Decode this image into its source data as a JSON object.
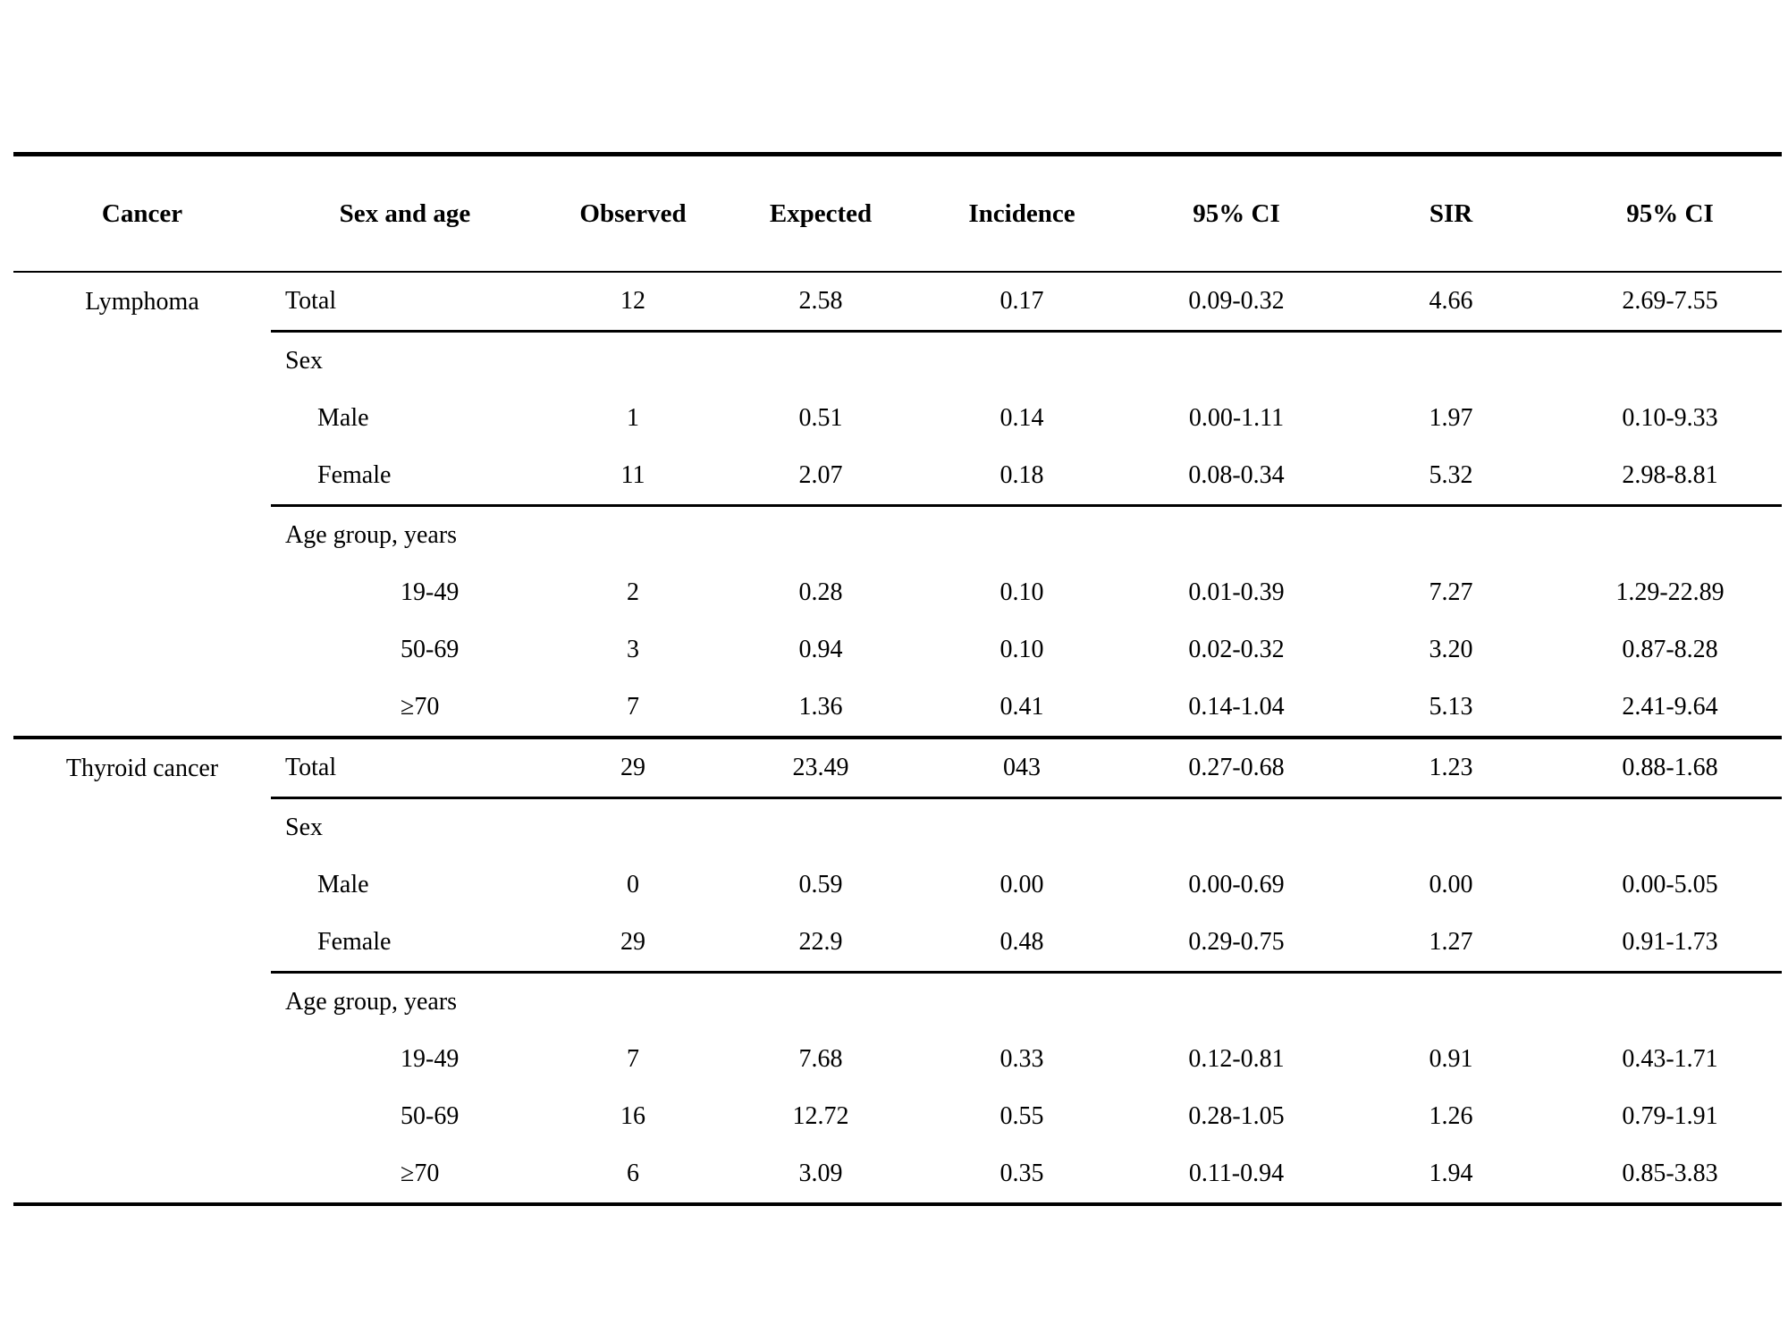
{
  "table": {
    "headers": [
      "Cancer",
      "Sex and age",
      "Observed",
      "Expected",
      "Incidence",
      "95% CI",
      "SIR",
      "95% CI"
    ],
    "rows": [
      {
        "cancer": "Lymphoma",
        "label": "Total",
        "values": [
          "12",
          "2.58",
          "0.17",
          "0.09-0.32",
          "4.66",
          "2.69-7.55"
        ]
      },
      {
        "label": "Sex",
        "values": []
      },
      {
        "label": "Male",
        "values": [
          "1",
          "0.51",
          "0.14",
          "0.00-1.11",
          "1.97",
          "0.10-9.33"
        ]
      },
      {
        "label": "Female",
        "values": [
          "11",
          "2.07",
          "0.18",
          "0.08-0.34",
          "5.32",
          "2.98-8.81"
        ]
      },
      {
        "label": "Age group, years",
        "values": []
      },
      {
        "label": "19-49",
        "values": [
          "2",
          "0.28",
          "0.10",
          "0.01-0.39",
          "7.27",
          "1.29-22.89"
        ]
      },
      {
        "label": "50-69",
        "values": [
          "3",
          "0.94",
          "0.10",
          "0.02-0.32",
          "3.20",
          "0.87-8.28"
        ]
      },
      {
        "label": "≥70",
        "values": [
          "7",
          "1.36",
          "0.41",
          "0.14-1.04",
          "5.13",
          "2.41-9.64"
        ]
      },
      {
        "cancer": "Thyroid cancer",
        "label": "Total",
        "values": [
          "29",
          "23.49",
          "043",
          "0.27-0.68",
          "1.23",
          "0.88-1.68"
        ]
      },
      {
        "label": "Sex",
        "values": []
      },
      {
        "label": "Male",
        "values": [
          "0",
          "0.59",
          "0.00",
          "0.00-0.69",
          "0.00",
          "0.00-5.05"
        ]
      },
      {
        "label": "Female",
        "values": [
          "29",
          "22.9",
          "0.48",
          "0.29-0.75",
          "1.27",
          "0.91-1.73"
        ]
      },
      {
        "label": "Age group, years",
        "values": []
      },
      {
        "label": "19-49",
        "values": [
          "7",
          "7.68",
          "0.33",
          "0.12-0.81",
          "0.91",
          "0.43-1.71"
        ]
      },
      {
        "label": "50-69",
        "values": [
          "16",
          "12.72",
          "0.55",
          "0.28-1.05",
          "1.26",
          "0.79-1.91"
        ]
      },
      {
        "label": "≥70",
        "values": [
          "6",
          "3.09",
          "0.35",
          "0.11-0.94",
          "1.94",
          "0.85-3.83"
        ]
      }
    ]
  }
}
